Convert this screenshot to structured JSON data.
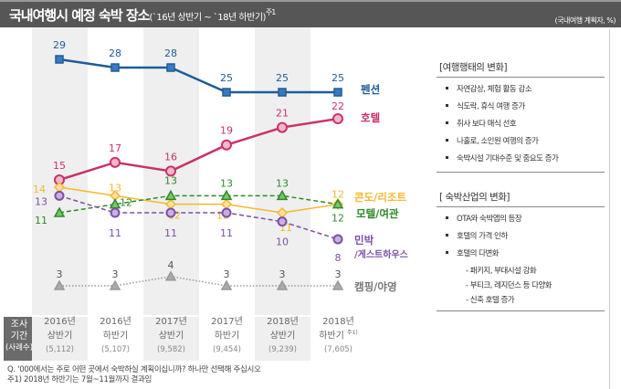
{
  "header": {
    "title": "국내여행시 예정 숙박 장소",
    "subtitle": "(`16년 상반기 ~ `18년 하반기)",
    "note": "주1",
    "unit": "(국내여행 계획자, %)"
  },
  "chart_data": {
    "type": "line",
    "categories": [
      "2016년 상반기",
      "2016년 하반기",
      "2017년 상반기",
      "2017년 하반기",
      "2018년 상반기",
      "2018년 하반기"
    ],
    "series": [
      {
        "name": "펜션",
        "values": [
          29,
          28,
          28,
          25,
          25,
          25
        ],
        "color": "#1f5c99",
        "marker": "square",
        "dash": "solid"
      },
      {
        "name": "호텔",
        "values": [
          15,
          17,
          16,
          19,
          21,
          22
        ],
        "color": "#c8326c",
        "marker": "circle",
        "dash": "solid"
      },
      {
        "name": "콘도/리조트",
        "values": [
          14,
          13,
          12,
          12,
          11,
          12
        ],
        "color": "#f6b82c",
        "marker": "diamond",
        "dash": "solid"
      },
      {
        "name": "모텔/여관",
        "values": [
          11,
          12,
          13,
          13,
          13,
          12
        ],
        "color": "#2e8a2a",
        "marker": "triangle",
        "dash": "dashed"
      },
      {
        "name": "민박/게스트하우스",
        "values": [
          13,
          11,
          11,
          11,
          10,
          8
        ],
        "color": "#7d4fa6",
        "marker": "circle",
        "dash": "dashed"
      },
      {
        "name": "캠핑/야영",
        "values": [
          3,
          3,
          4,
          3,
          3,
          3
        ],
        "color": "#999999",
        "marker": "triangle",
        "dash": "dotted"
      }
    ],
    "legend_placement": "right-inline"
  },
  "survey": {
    "label_lines": [
      "조사",
      "기간",
      "(사례수)"
    ],
    "periods": [
      {
        "year": "2016년",
        "half": "상반기",
        "n": "(5,112)",
        "note": ""
      },
      {
        "year": "2016년",
        "half": "하반기",
        "n": "(5,107)",
        "note": ""
      },
      {
        "year": "2017년",
        "half": "상반기",
        "n": "(9,582)",
        "note": ""
      },
      {
        "year": "2017년",
        "half": "하반기",
        "n": "(9,454)",
        "note": ""
      },
      {
        "year": "2018년",
        "half": "상반기",
        "n": "(9,239)",
        "note": ""
      },
      {
        "year": "2018년",
        "half": "하반기",
        "n": "(7,605)",
        "note": "주1)"
      }
    ]
  },
  "panel1": {
    "title": "[여행행태의 변화]",
    "items": [
      "자연감상, 체험 활동 감소",
      "식도락, 휴식 여행 증가",
      "취사 보다 매식 선호",
      "나홀로, 소인원 여행의 증가",
      "숙박시설 기대수준 및 중요도 증가"
    ]
  },
  "panel2": {
    "title": "[ 숙박산업의 변화]",
    "items": [
      "OTA와 숙박앱의 등장",
      "호텔의 가격 인하",
      "호텔의 다변화"
    ],
    "subs": [
      "- 패키지, 부대시설 강화",
      "- 부티크, 레지던스 등 다양화",
      "- 신축 호텔 증가"
    ]
  },
  "footnotes": [
    "Q. '000에서는  주로 어떤 곳에서 숙박하실 계획이십니까? 하나만 선택해 주십시오",
    "주1) 2018년 하반기는 7월~11월까지  결과임"
  ]
}
